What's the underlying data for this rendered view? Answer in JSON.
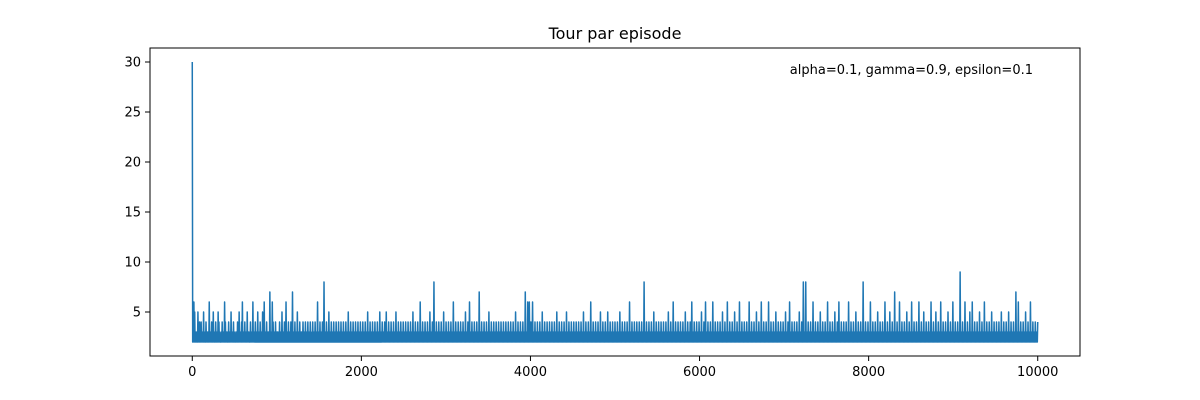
{
  "chart_data": {
    "type": "line",
    "title": "Tour par episode",
    "xlabel": "",
    "ylabel": "",
    "annotation": "alpha=0.1, gamma=0.9, epsilon=0.1",
    "xlim": [
      -500,
      10500
    ],
    "ylim": [
      0.6,
      31.4
    ],
    "x_ticks": [
      0,
      2000,
      4000,
      6000,
      8000,
      10000
    ],
    "y_ticks": [
      5,
      10,
      15,
      20,
      25,
      30
    ],
    "x_tick_labels": [
      "0",
      "2000",
      "4000",
      "6000",
      "8000",
      "10000"
    ],
    "y_tick_labels": [
      "5",
      "10",
      "15",
      "20",
      "25",
      "30"
    ],
    "grid": false,
    "colors": {
      "line": "#1f77b4"
    },
    "series": [
      {
        "x_start": 0,
        "x_step": 10,
        "values": [
          30,
          6,
          6,
          5,
          3,
          3,
          2,
          5,
          3,
          4,
          3,
          4,
          3,
          3,
          5,
          3,
          2,
          4,
          3,
          3,
          3,
          6,
          3,
          3,
          4,
          3,
          5,
          3,
          2,
          4,
          3,
          3,
          5,
          4,
          3,
          2,
          3,
          4,
          3,
          3,
          6,
          4,
          3,
          3,
          2,
          4,
          3,
          3,
          5,
          3,
          3,
          4,
          3,
          2,
          3,
          3,
          4,
          3,
          5,
          3,
          3,
          4,
          6,
          3,
          3,
          4,
          3,
          3,
          5,
          3,
          3,
          2,
          4,
          3,
          3,
          6,
          3,
          3,
          4,
          3,
          3,
          5,
          3,
          3,
          4,
          3,
          3,
          5,
          3,
          6,
          3,
          3,
          4,
          3,
          3,
          3,
          7,
          3,
          3,
          6,
          4,
          3,
          3,
          4,
          3,
          3,
          3,
          2,
          4,
          3,
          3,
          5,
          3,
          3,
          4,
          3,
          6,
          3,
          3,
          4,
          3,
          3,
          4,
          3,
          7,
          3,
          3,
          4,
          3,
          3,
          5,
          3,
          3,
          4,
          3,
          3,
          3,
          4,
          3,
          3,
          4,
          3,
          3,
          4,
          3,
          3,
          4,
          3,
          2,
          4,
          3,
          3,
          4,
          3,
          3,
          6,
          3,
          3,
          4,
          3,
          3,
          4,
          3,
          8,
          3,
          3,
          4,
          3,
          3,
          5,
          3,
          3,
          4,
          3,
          3,
          4,
          3,
          3,
          4,
          3,
          3,
          4,
          3,
          3,
          4,
          3,
          3,
          4,
          3,
          3,
          4,
          3,
          3,
          5,
          3,
          3,
          4,
          3,
          3,
          4,
          3,
          3,
          4,
          3,
          3,
          4,
          3,
          3,
          4,
          3,
          3,
          4,
          3,
          3,
          4,
          3,
          3,
          5,
          3,
          3,
          4,
          3,
          3,
          4,
          3,
          3,
          4,
          3,
          3,
          4,
          3,
          3,
          5,
          3,
          3,
          4,
          3,
          3,
          4,
          3,
          5,
          3,
          3,
          4,
          3,
          3,
          4,
          3,
          3,
          4,
          3,
          3,
          5,
          3,
          3,
          4,
          3,
          3,
          4,
          3,
          3,
          4,
          3,
          3,
          4,
          3,
          3,
          4,
          3,
          3,
          4,
          3,
          3,
          5,
          3,
          3,
          4,
          3,
          3,
          4,
          3,
          3,
          6,
          3,
          3,
          4,
          3,
          3,
          4,
          3,
          3,
          4,
          3,
          3,
          5,
          3,
          3,
          4,
          3,
          8,
          3,
          3,
          4,
          3,
          3,
          4,
          3,
          3,
          4,
          3,
          3,
          5,
          3,
          3,
          4,
          3,
          3,
          4,
          3,
          3,
          4,
          3,
          3,
          6,
          3,
          3,
          4,
          3,
          3,
          4,
          3,
          3,
          4,
          3,
          3,
          4,
          3,
          3,
          5,
          3,
          3,
          4,
          3,
          6,
          3,
          3,
          4,
          3,
          3,
          4,
          3,
          3,
          4,
          3,
          3,
          7,
          3,
          3,
          4,
          3,
          3,
          4,
          3,
          3,
          4,
          3,
          3,
          5,
          3,
          3,
          4,
          3,
          3,
          4,
          3,
          3,
          4,
          3,
          3,
          4,
          3,
          3,
          4,
          3,
          3,
          4,
          3,
          3,
          4,
          3,
          3,
          4,
          3,
          3,
          4,
          3,
          3,
          4,
          3,
          3,
          5,
          3,
          3,
          4,
          3,
          3,
          4,
          3,
          3,
          4,
          3,
          3,
          7,
          3,
          3,
          6,
          3,
          6,
          3,
          4,
          3,
          6,
          3,
          3,
          4,
          3,
          3,
          4,
          3,
          3,
          4,
          3,
          3,
          5,
          3,
          3,
          4,
          3,
          3,
          4,
          3,
          3,
          4,
          3,
          3,
          4,
          3,
          3,
          4,
          3,
          3,
          5,
          3,
          3,
          4,
          3,
          3,
          4,
          3,
          3,
          4,
          3,
          3,
          5,
          3,
          3,
          4,
          3,
          3,
          4,
          3,
          3,
          4,
          3,
          3,
          4,
          3,
          3,
          4,
          3,
          3,
          4,
          3,
          3,
          5,
          3,
          3,
          4,
          3,
          3,
          4,
          3,
          3,
          6,
          3,
          3,
          4,
          3,
          3,
          4,
          3,
          3,
          4,
          3,
          3,
          5,
          3,
          3,
          4,
          3,
          3,
          4,
          3,
          3,
          5,
          3,
          3,
          4,
          3,
          3,
          4,
          3,
          3,
          4,
          3,
          3,
          4,
          3,
          3,
          5,
          3,
          3,
          4,
          3,
          3,
          4,
          3,
          3,
          4,
          3,
          3,
          6,
          3,
          3,
          4,
          3,
          3,
          4,
          3,
          3,
          4,
          3,
          3,
          4,
          3,
          3,
          4,
          3,
          3,
          8,
          3,
          3,
          4,
          3,
          3,
          4,
          3,
          3,
          4,
          3,
          3,
          5,
          3,
          3,
          4,
          3,
          3,
          4,
          3,
          3,
          4,
          3,
          3,
          4,
          3,
          3,
          4,
          3,
          3,
          5,
          3,
          3,
          4,
          3,
          3,
          6,
          3,
          3,
          4,
          3,
          3,
          4,
          3,
          3,
          4,
          3,
          3,
          4,
          3,
          3,
          5,
          3,
          3,
          4,
          3,
          3,
          4,
          3,
          6,
          3,
          3,
          4,
          3,
          3,
          4,
          3,
          3,
          4,
          3,
          3,
          5,
          3,
          3,
          4,
          3,
          6,
          3,
          3,
          4,
          3,
          3,
          4,
          3,
          3,
          6,
          3,
          3,
          4,
          3,
          3,
          4,
          3,
          3,
          4,
          3,
          3,
          5,
          3,
          3,
          4,
          3,
          3,
          6,
          3,
          3,
          4,
          3,
          3,
          4,
          3,
          3,
          5,
          3,
          3,
          4,
          3,
          3,
          6,
          3,
          3,
          4,
          3,
          3,
          4,
          3,
          3,
          4,
          3,
          3,
          6,
          3,
          3,
          4,
          3,
          3,
          4,
          3,
          3,
          5,
          3,
          3,
          4,
          3,
          3,
          6,
          3,
          3,
          4,
          3,
          3,
          4,
          3,
          3,
          6,
          3,
          3,
          4,
          3,
          3,
          4,
          3,
          3,
          5,
          3,
          3,
          4,
          3,
          3,
          4,
          3,
          3,
          4,
          3,
          3,
          5,
          3,
          3,
          4,
          3,
          6,
          3,
          3,
          4,
          3,
          3,
          4,
          3,
          3,
          4,
          3,
          3,
          5,
          3,
          3,
          4,
          3,
          8,
          3,
          3,
          8,
          3,
          3,
          4,
          3,
          3,
          4,
          3,
          3,
          6,
          3,
          3,
          4,
          3,
          3,
          4,
          3,
          3,
          5,
          3,
          3,
          4,
          3,
          3,
          4,
          3,
          3,
          6,
          3,
          3,
          4,
          3,
          3,
          4,
          3,
          3,
          5,
          3,
          3,
          4,
          3,
          6,
          3,
          3,
          4,
          3,
          3,
          4,
          3,
          3,
          4,
          3,
          3,
          6,
          3,
          3,
          4,
          3,
          3,
          4,
          3,
          3,
          5,
          3,
          3,
          4,
          3,
          3,
          4,
          3,
          3,
          8,
          3,
          3,
          4,
          3,
          3,
          4,
          3,
          3,
          6,
          3,
          3,
          4,
          3,
          3,
          4,
          3,
          3,
          5,
          3,
          3,
          4,
          3,
          3,
          4,
          3,
          3,
          6,
          3,
          3,
          4,
          3,
          3,
          5,
          3,
          3,
          4,
          3,
          3,
          7,
          3,
          3,
          4,
          3,
          3,
          6,
          3,
          3,
          4,
          3,
          3,
          4,
          3,
          3,
          5,
          3,
          3,
          4,
          3,
          3,
          6,
          3,
          3,
          4,
          3,
          3,
          4,
          3,
          3,
          6,
          3,
          3,
          4,
          3,
          3,
          5,
          3,
          3,
          4,
          3,
          3,
          4,
          3,
          3,
          6,
          3,
          3,
          4,
          3,
          3,
          5,
          3,
          3,
          4,
          3,
          3,
          6,
          3,
          3,
          4,
          3,
          3,
          4,
          3,
          3,
          5,
          3,
          3,
          4,
          3,
          3,
          6,
          3,
          3,
          4,
          3,
          3,
          4,
          3,
          3,
          9,
          3,
          3,
          4,
          3,
          3,
          6,
          3,
          3,
          4,
          3,
          3,
          5,
          3,
          3,
          6,
          3,
          3,
          4,
          3,
          3,
          4,
          3,
          3,
          5,
          3,
          3,
          4,
          3,
          3,
          6,
          3,
          3,
          4,
          3,
          3,
          4,
          3,
          3,
          5,
          3,
          3,
          4,
          3,
          3,
          4,
          3,
          3,
          4,
          3,
          3,
          5,
          3,
          3,
          4,
          3,
          3,
          4,
          3,
          3,
          5,
          3,
          3,
          4,
          3,
          3,
          4,
          3,
          3,
          7,
          3,
          3,
          6,
          3,
          3,
          4,
          3,
          3,
          4,
          3,
          3,
          5,
          3,
          3,
          4,
          3,
          3,
          6,
          3,
          3,
          4,
          3,
          3,
          4,
          3,
          3,
          4
        ]
      }
    ]
  }
}
